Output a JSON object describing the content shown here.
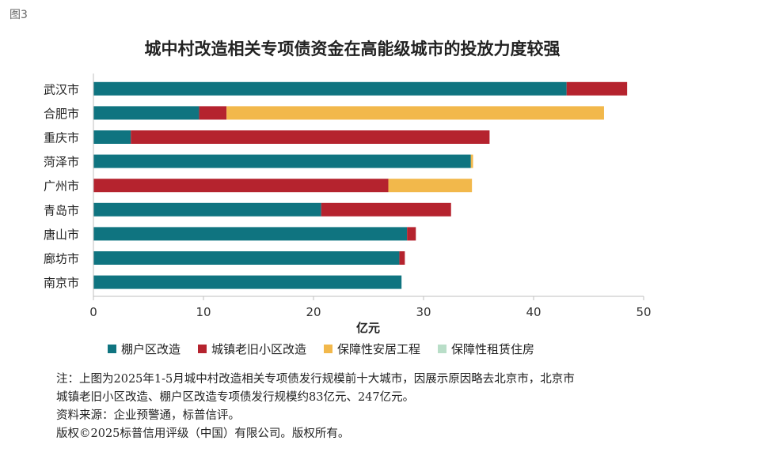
{
  "figure_label": "图3",
  "chart_data": {
    "type": "bar",
    "orientation": "horizontal",
    "stacked": true,
    "title": "城中村改造相关专项债资金在高能级城市的投放力度较强",
    "xlabel": "亿元",
    "ylabel": "",
    "xlim": [
      0,
      50
    ],
    "xticks": [
      "0",
      "10",
      "20",
      "30",
      "40",
      "50"
    ],
    "grid": false,
    "legend_position": "bottom",
    "categories": [
      "武汉市",
      "合肥市",
      "重庆市",
      "菏泽市",
      "广州市",
      "青岛市",
      "唐山市",
      "廊坊市",
      "南京市"
    ],
    "series": [
      {
        "name": "棚户区改造",
        "color": "#0f7480",
        "values": [
          43.0,
          9.6,
          3.4,
          34.3,
          0,
          20.7,
          28.5,
          27.8,
          28.0
        ]
      },
      {
        "name": "城镇老旧小区改造",
        "color": "#b5232e",
        "values": [
          5.5,
          2.5,
          32.6,
          0,
          26.8,
          11.8,
          0.8,
          0.5,
          0
        ]
      },
      {
        "name": "保障性安居工程",
        "color": "#f2b84b",
        "values": [
          0,
          34.3,
          0,
          0.2,
          7.6,
          0,
          0,
          0,
          0
        ]
      },
      {
        "name": "保障性租赁住房",
        "color": "#b9dec8",
        "values": [
          0,
          0,
          0,
          0,
          0,
          0,
          0,
          0,
          0
        ]
      }
    ]
  },
  "notes": [
    "注：上图为2025年1-5月城中村改造相关专项债发行规模前十大城市，因展示原因略去北京市，北京市",
    "城镇老旧小区改造、棚户区改造专项债发行规模约83亿元、247亿元。",
    "资料来源：企业预警通，标普信评。",
    "版权©2025标普信用评级（中国）有限公司。版权所有。"
  ]
}
